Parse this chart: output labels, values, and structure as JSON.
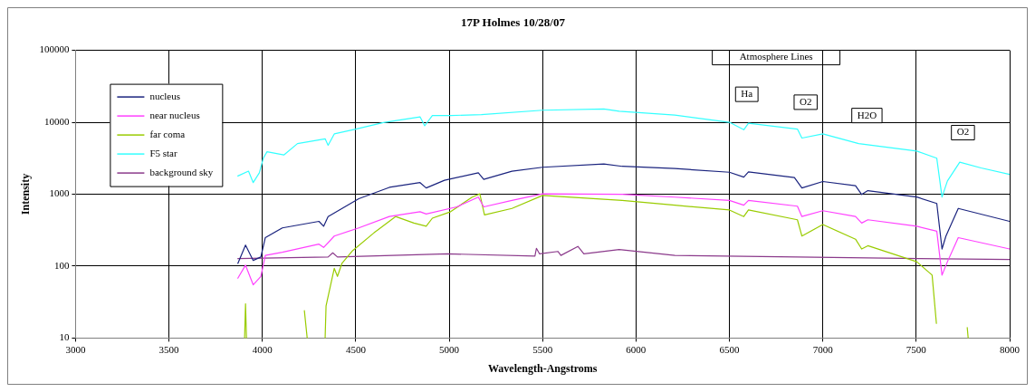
{
  "chart_data": {
    "type": "line",
    "title": "17P Holmes 10/28/07",
    "xlabel": "Wavelength-Angstroms",
    "ylabel": "Intensity",
    "log": "y",
    "grid": true,
    "legend": "top left",
    "marker": "none",
    "line_style": "solid",
    "xlim": [
      3000,
      8000
    ],
    "xticks": [
      3000,
      3500,
      4000,
      4500,
      5000,
      5500,
      6000,
      6500,
      7000,
      7500,
      8000
    ],
    "ylim": [
      10,
      100000
    ],
    "yticks": [
      10,
      100,
      1000,
      10000,
      100000
    ],
    "series": [
      {
        "name": "nucleus",
        "color": "#1a237e",
        "x": [
          3869,
          3910,
          3951,
          3992,
          4016,
          4107,
          4303,
          4328,
          4352,
          4516,
          4680,
          4844,
          4877,
          4975,
          5156,
          5185,
          5336,
          5500,
          5828,
          5926,
          6208,
          6500,
          6577,
          6602,
          6848,
          6888,
          7000,
          7175,
          7208,
          7241,
          7503,
          7610,
          7638,
          7659,
          7725,
          8000
        ],
        "values": [
          109,
          196,
          120,
          134,
          249,
          340,
          419,
          358,
          489,
          865,
          1245,
          1450,
          1220,
          1560,
          1980,
          1610,
          2090,
          2370,
          2630,
          2440,
          2270,
          2020,
          1730,
          2040,
          1700,
          1220,
          1500,
          1310,
          990,
          1120,
          913,
          742,
          173,
          262,
          634,
          419
        ]
      },
      {
        "name": "near nucleus",
        "color": "#ff40ff",
        "x": [
          3869,
          3910,
          3951,
          3992,
          4016,
          4107,
          4303,
          4328,
          4385,
          4516,
          4680,
          4844,
          4877,
          5041,
          5156,
          5185,
          5336,
          5500,
          5926,
          6208,
          6500,
          6577,
          6602,
          6864,
          6888,
          7000,
          7175,
          7208,
          7241,
          7503,
          7610,
          7638,
          7667,
          7725,
          8000
        ],
        "values": [
          68,
          103,
          55,
          72,
          141,
          156,
          202,
          182,
          262,
          340,
          489,
          571,
          531,
          667,
          910,
          667,
          820,
          1010,
          995,
          910,
          820,
          703,
          820,
          681,
          489,
          589,
          489,
          397,
          441,
          358,
          306,
          75,
          115,
          249,
          173
        ]
      },
      {
        "name": "far coma",
        "color": "#99cc00",
        "x": [
          3905,
          3910,
          3915,
          3920,
          4225,
          4240,
          4300,
          4336,
          4341,
          4385,
          4402,
          4426,
          4484,
          4598,
          4713,
          4811,
          4877,
          4910,
          5008,
          5123,
          5164,
          5189,
          5336,
          5500,
          5926,
          6208,
          6500,
          6577,
          6602,
          6864,
          6888,
          7000,
          7175,
          7208,
          7241,
          7503,
          7585,
          7608,
          7700,
          7773,
          7778
        ],
        "values": [
          10,
          30,
          10,
          null,
          24,
          10,
          null,
          10,
          28,
          93,
          72,
          109,
          165,
          291,
          489,
          397,
          358,
          464,
          571,
          910,
          1010,
          515,
          634,
          960,
          820,
          703,
          603,
          489,
          603,
          441,
          262,
          378,
          237,
          173,
          192,
          115,
          75,
          16,
          null,
          14,
          10
        ]
      },
      {
        "name": "F5 star",
        "color": "#33ffff",
        "x": [
          3869,
          3926,
          3951,
          3984,
          4005,
          4025,
          4115,
          4188,
          4336,
          4352,
          4385,
          4500,
          4648,
          4844,
          4869,
          4910,
          5008,
          5172,
          5500,
          5828,
          5910,
          6208,
          6500,
          6577,
          6602,
          6864,
          6888,
          7000,
          7192,
          7503,
          7610,
          7638,
          7667,
          7733,
          7847,
          8000
        ],
        "values": [
          1790,
          2090,
          1450,
          1980,
          3160,
          3890,
          3510,
          5050,
          5890,
          4790,
          6880,
          8040,
          9900,
          11900,
          8920,
          12400,
          12400,
          12800,
          14700,
          15300,
          14200,
          12600,
          10000,
          7870,
          9700,
          8040,
          6030,
          6880,
          5050,
          3980,
          3160,
          913,
          1530,
          2790,
          2320,
          1880
        ]
      },
      {
        "name": "background sky",
        "color": "#8b3a8b",
        "x": [
          3869,
          4352,
          4377,
          4402,
          4992,
          5459,
          5467,
          5484,
          5582,
          5598,
          5689,
          5721,
          5910,
          6208,
          6864,
          7520,
          8000
        ],
        "values": [
          127,
          134,
          153,
          134,
          148,
          138,
          177,
          148,
          160,
          141,
          188,
          148,
          170,
          141,
          134,
          127,
          124
        ]
      }
    ],
    "annotations": [
      "Atmosphere Lines",
      {
        "text": "Ha",
        "x": 6593,
        "y": 24500
      },
      {
        "text": "O2",
        "x": 6908,
        "y": 19000
      },
      {
        "text": "H2O",
        "x": 7236,
        "y": 12400
      },
      {
        "text": "O2",
        "x": 7750,
        "y": 7180
      }
    ]
  }
}
